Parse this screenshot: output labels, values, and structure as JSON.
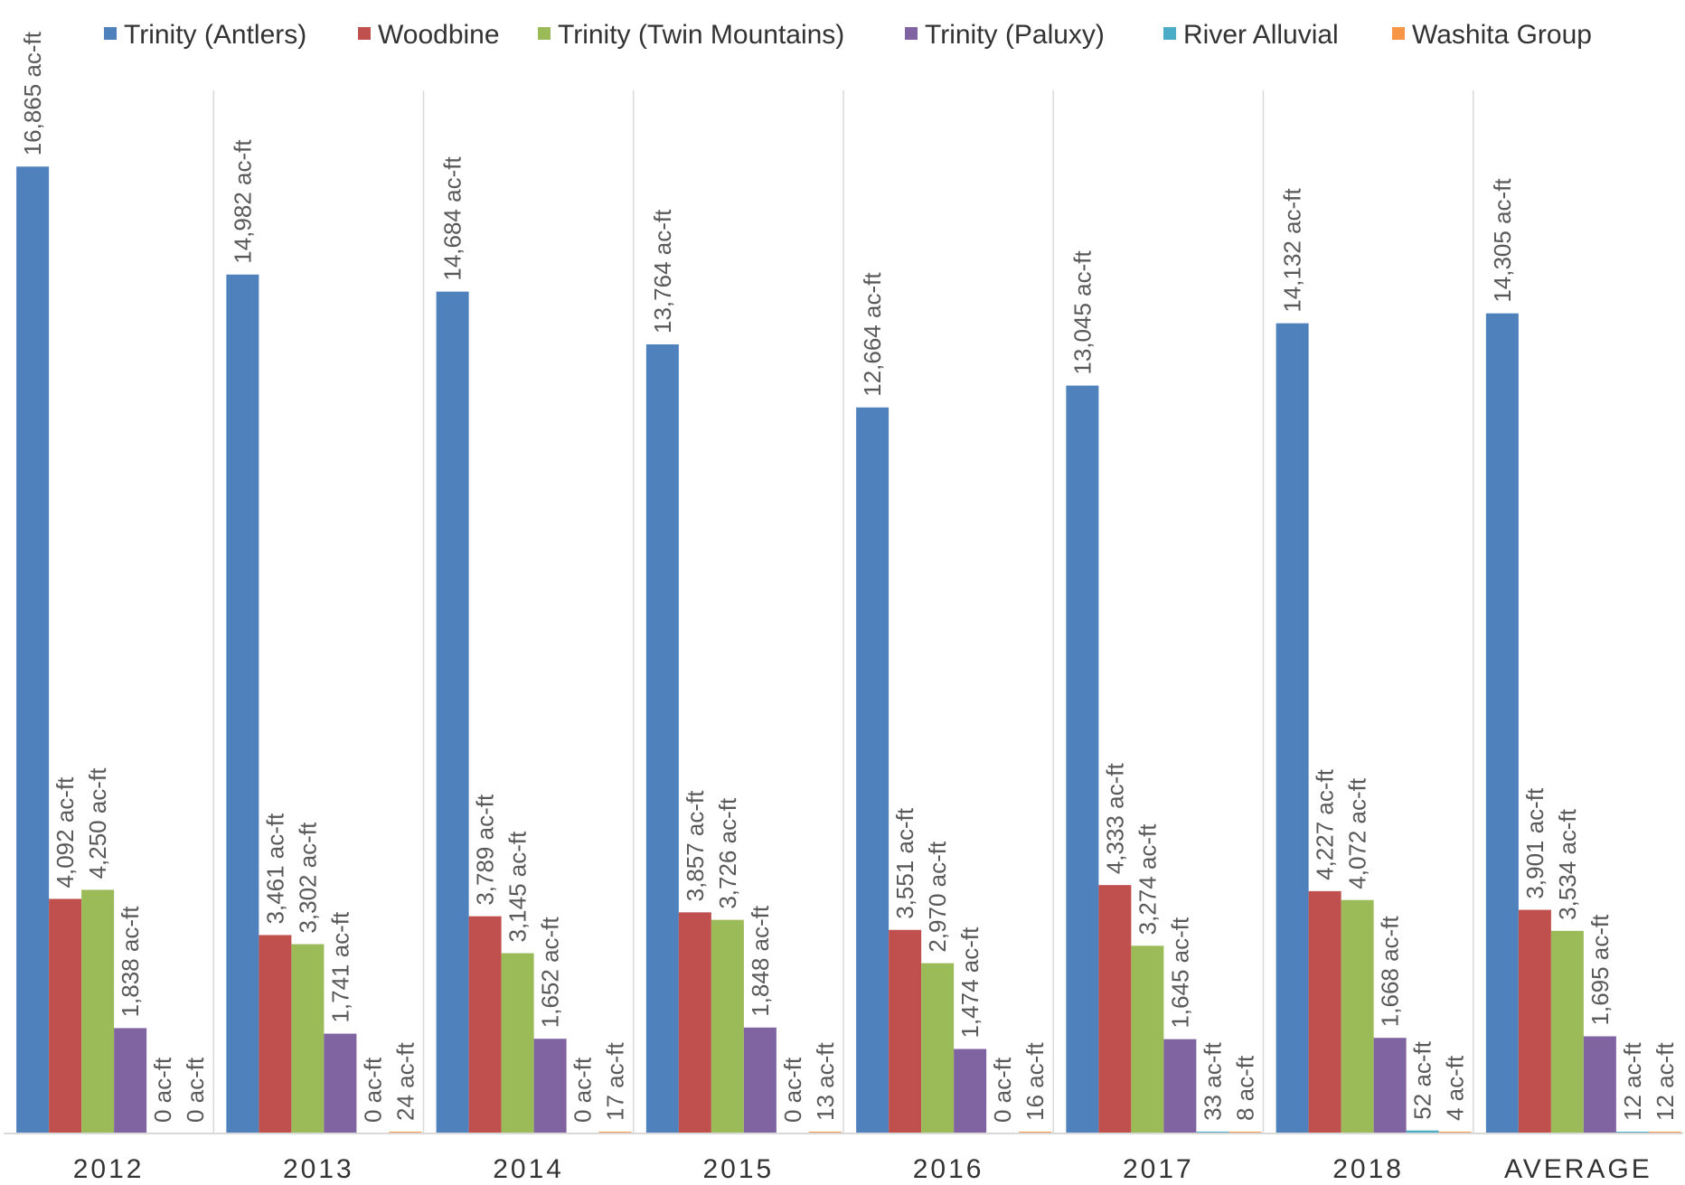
{
  "chart_data": {
    "type": "bar",
    "title": "",
    "xlabel": "",
    "ylabel": "",
    "ylim": [
      0,
      17800
    ],
    "unit_suffix": " ac-ft",
    "grid": false,
    "legend_position": "top",
    "categories": [
      "2012",
      "2013",
      "2014",
      "2015",
      "2016",
      "2017",
      "2018",
      "AVERAGE"
    ],
    "series": [
      {
        "name": "Trinity (Antlers)",
        "color": "#4F81BD",
        "values": [
          16865,
          14982,
          14684,
          13764,
          12664,
          13045,
          14132,
          14305
        ]
      },
      {
        "name": "Woodbine",
        "color": "#C0504D",
        "values": [
          4092,
          3461,
          3789,
          3857,
          3551,
          4333,
          4227,
          3901
        ]
      },
      {
        "name": "Trinity (Twin Mountains)",
        "color": "#9BBB59",
        "values": [
          4250,
          3302,
          3145,
          3726,
          2970,
          3274,
          4072,
          3534
        ]
      },
      {
        "name": "Trinity (Paluxy)",
        "color": "#8064A2",
        "values": [
          1838,
          1741,
          1652,
          1848,
          1474,
          1645,
          1668,
          1695
        ]
      },
      {
        "name": "River Alluvial",
        "color": "#4BACC6",
        "values": [
          0,
          0,
          0,
          0,
          0,
          33,
          52,
          12
        ]
      },
      {
        "name": "Washita Group",
        "color": "#F79646",
        "values": [
          0,
          24,
          17,
          13,
          16,
          8,
          4,
          12
        ]
      }
    ]
  }
}
